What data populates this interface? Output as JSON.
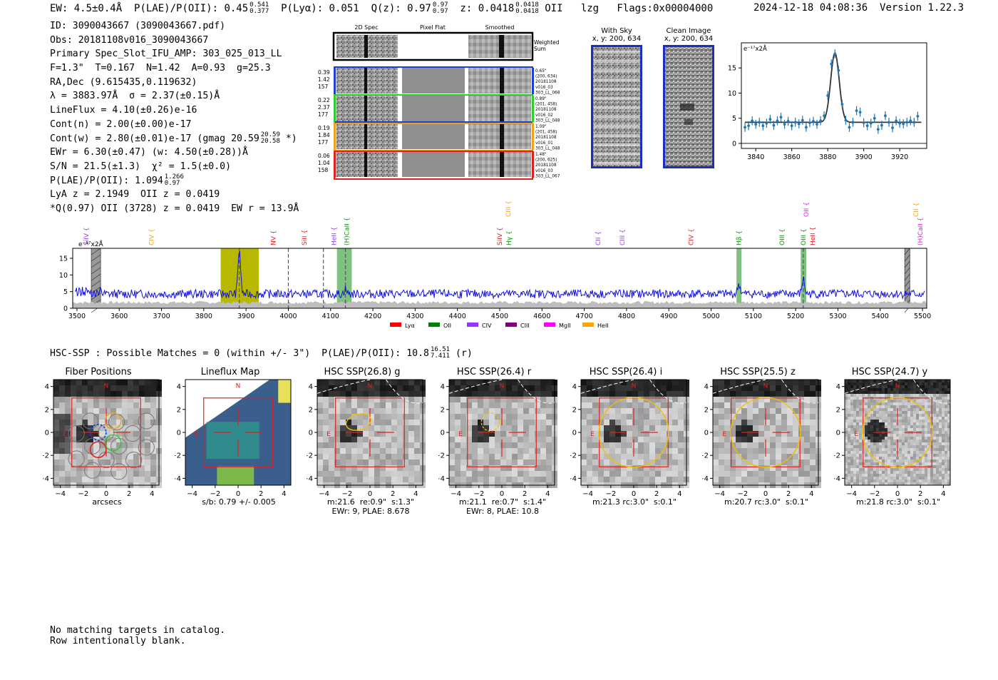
{
  "header": {
    "ew": "EW: 4.5±0.4Å",
    "plae_label": "P(LAE)/P(OII): 0.45",
    "plae_hi": "0.541",
    "plae_lo": "0.377",
    "plya": "P(Lyα): 0.051",
    "qz_label": "Q(z): 0.97",
    "qz_hi": "0.97",
    "qz_lo": "0.97",
    "z_label": "z: 0.0418",
    "z_hi": "0.0418",
    "z_lo": "0.0418",
    "z_line": "OII",
    "flags": "lzg   Flags:0x00004000",
    "datetime": "2024-12-18 04:08:36",
    "version": "Version 1.22.3"
  },
  "info": {
    "id": "ID: 3090043667 (3090043667.pdf)",
    "obs": "Obs: 20181108v016_3090043667",
    "spec": "Primary Spec_Slot_IFU_AMP: 303_025_013_LL",
    "fit": "F=1.3\"  T=0.167  N=1.42  A=0.93  g=25.3",
    "radec": "RA,Dec (9.615435,0.119632)",
    "lambda": "λ = 3883.97Å  σ = 2.37(±0.15)Å",
    "lineflux": "LineFlux = 4.10(±0.26)e-16",
    "contn": "Cont(n) = 2.00(±0.00)e-17",
    "contw": "Cont(w) = 2.80(±0.01)e-17 (gmag 20.59",
    "contw_hi": "20.59",
    "contw_lo": "20.58",
    "contw_end": "*)",
    "ewr": "EWr = 6.30(±0.47) (w: 4.50(±0.28))Å",
    "sn": "S/N = 21.5(±1.3)  χ² = 1.5(±0.0)",
    "plae": "P(LAE)/P(OII): 1.094",
    "plae_hi": "1.266",
    "plae_lo": "0.97",
    "lya": "LyA z = 2.1949  OII z = 0.0419",
    "q": "*Q(0.97) OII (3728) z = 0.0419  EW r = 13.9Å"
  },
  "spec2d": {
    "col_titles": [
      "2D Spec",
      "Pixel Flat",
      "Smoothed"
    ],
    "weighted_sum": "Weighted Sum",
    "rows": [
      {
        "left": [
          "0.39",
          "1.42",
          "157"
        ],
        "right": [
          "0.65\"",
          "(200, 634)",
          "20181108",
          "v016_03",
          "303_LL_068"
        ],
        "color": "#1f3fd0"
      },
      {
        "left": [
          "0.22",
          "2.37",
          "177"
        ],
        "right": [
          "0.89\"",
          "(201, 458)",
          "20181108",
          "v016_02",
          "303_LL_048"
        ],
        "color": "#2ecc2e"
      },
      {
        "left": [
          "0.19",
          "1.84",
          "177"
        ],
        "right": [
          "1.09\"",
          "(201, 458)",
          "20181108",
          "v016_01",
          "303_LL_048"
        ],
        "color": "#f0a020"
      },
      {
        "left": [
          "0.06",
          "1.04",
          "158"
        ],
        "right": [
          "1.48\"",
          "(200, 625)",
          "20181108",
          "v016_03",
          "303_LL_067"
        ],
        "color": "#e02020"
      }
    ]
  },
  "sky": {
    "with_sky_title": "With Sky",
    "with_sky_sub": "x, y: 200, 634",
    "clean_title": "Clean Image",
    "clean_sub": "x, y: 200, 634"
  },
  "zoom_chart": {
    "type": "scatter",
    "ylabel": "e⁻¹⁷x2Å",
    "xlim": [
      3832,
      3935
    ],
    "ylim": [
      -1,
      20
    ],
    "xticks": [
      3840,
      3860,
      3880,
      3900,
      3920
    ],
    "yticks": [
      0,
      5,
      10,
      15
    ],
    "points_x": [
      3834,
      3836,
      3838,
      3840,
      3842,
      3844,
      3846,
      3848,
      3850,
      3852,
      3854,
      3856,
      3858,
      3860,
      3862,
      3864,
      3866,
      3868,
      3870,
      3872,
      3874,
      3876,
      3878,
      3880,
      3882,
      3884,
      3886,
      3888,
      3890,
      3892,
      3894,
      3896,
      3898,
      3900,
      3902,
      3904,
      3906,
      3908,
      3910,
      3912,
      3914,
      3916,
      3918,
      3920,
      3922,
      3924,
      3926,
      3928,
      3930
    ],
    "points_y": [
      3.2,
      3.5,
      4.5,
      3.8,
      4.2,
      3.5,
      4.0,
      4.8,
      3.6,
      4.5,
      5.2,
      3.8,
      4.4,
      3.5,
      4.2,
      3.9,
      4.6,
      3.2,
      4.1,
      4.4,
      3.8,
      4.5,
      5.5,
      9.5,
      15.8,
      17.8,
      14.5,
      7.8,
      4.6,
      3.2,
      4.2,
      6.5,
      6.2,
      4.1,
      3.5,
      4.0,
      5.0,
      2.8,
      3.6,
      5.5,
      4.2,
      3.1,
      4.5,
      4.0,
      3.9,
      4.2,
      4.5,
      4.2,
      5.4
    ],
    "fit_continuum": 4.2,
    "fit_center": 3884,
    "fit_sigma": 2.37,
    "fit_amp": 13.8
  },
  "spectrum": {
    "type": "line",
    "ylabel": "e⁻¹⁷x2Å",
    "xlim": [
      3490,
      5510
    ],
    "ylim": [
      0,
      18
    ],
    "xticks": [
      3500,
      3600,
      3700,
      3800,
      3900,
      4000,
      4100,
      4200,
      4300,
      4400,
      4500,
      4600,
      4700,
      4800,
      4900,
      5000,
      5100,
      5200,
      5300,
      5400,
      5500
    ],
    "yticks": [
      0,
      5,
      10,
      15
    ],
    "highlight": {
      "x0": 3840,
      "x1": 3930,
      "color": "#b8b800"
    },
    "green_bands": [
      [
        4115,
        4150
      ],
      [
        5060,
        5072
      ],
      [
        5212,
        5225
      ]
    ],
    "gray_hatch": [
      [
        3534,
        3556
      ],
      [
        5458,
        5470
      ]
    ],
    "dashed_lines": [
      3884,
      4000,
      4083,
      4135,
      5218
    ],
    "emission_peaks": [
      {
        "x": 3884,
        "h": 13.5
      },
      {
        "x": 4135,
        "h": 1.5
      },
      {
        "x": 5066,
        "h": 3.0
      },
      {
        "x": 5218,
        "h": 4.5
      }
    ],
    "line_labels": [
      {
        "x": 3522,
        "text": "SiIV",
        "color": "#9040e0",
        "row": 1
      },
      {
        "x": 3676,
        "text": "CIV",
        "color": "#f0a020",
        "row": 1
      },
      {
        "x": 3965,
        "text": "NV",
        "color": "#e02020",
        "row": 1
      },
      {
        "x": 4038,
        "text": "SiII",
        "color": "#e02020",
        "row": 1
      },
      {
        "x": 4108,
        "text": "HeII",
        "color": "#9040e0",
        "row": 1
      },
      {
        "x": 4138,
        "text": "(H)CaII",
        "color": "#009900",
        "row": 1
      },
      {
        "x": 4500,
        "text": "SiIV",
        "color": "#e02020",
        "row": 1
      },
      {
        "x": 4520,
        "text": "CIII",
        "color": "#f0a020",
        "row": 0
      },
      {
        "x": 4522,
        "text": "Hγ",
        "color": "#009900",
        "row": 1
      },
      {
        "x": 4733,
        "text": "CII",
        "color": "#9040e0",
        "row": 1
      },
      {
        "x": 4790,
        "text": "CIII",
        "color": "#9040e0",
        "row": 1
      },
      {
        "x": 4953,
        "text": "CIV",
        "color": "#e02020",
        "row": 1
      },
      {
        "x": 5066,
        "text": "Hβ",
        "color": "#009900",
        "row": 1
      },
      {
        "x": 5168,
        "text": "OIII",
        "color": "#009900",
        "row": 1
      },
      {
        "x": 5218,
        "text": "OIII",
        "color": "#009900",
        "row": 1
      },
      {
        "x": 5225,
        "text": "OII",
        "color": "#e020e0",
        "row": 0
      },
      {
        "x": 5240,
        "text": "HeII",
        "color": "#e02020",
        "row": 1
      },
      {
        "x": 5485,
        "text": "CII",
        "color": "#f0a020",
        "row": 0
      },
      {
        "x": 5495,
        "text": "(H)CaII",
        "color": "#e020e0",
        "row": 1
      }
    ],
    "legend": [
      {
        "label": "Lyα",
        "color": "#ff0000"
      },
      {
        "label": "OII",
        "color": "#008000"
      },
      {
        "label": "CIV",
        "color": "#9933ff"
      },
      {
        "label": "CIII",
        "color": "#800080"
      },
      {
        "label": "MgII",
        "color": "#ff00ff"
      },
      {
        "label": "HeII",
        "color": "#ffa500"
      }
    ]
  },
  "hsc": {
    "summary": "HSC-SSP : Possible Matches = 0 (within +/- 3\")  P(LAE)/P(OII): 10.8",
    "summary_hi": "16.51",
    "summary_lo": "7.411",
    "summary_end": "(r)",
    "ticks": [
      "−4",
      "−2",
      "0",
      "2",
      "4"
    ],
    "compass_n": "N",
    "compass_e": "E",
    "cutouts": [
      {
        "title": "Fiber Positions",
        "caption": [
          "arcsecs"
        ]
      },
      {
        "title": "Lineflux Map",
        "caption": [
          "s/b: 0.79 +/- 0.005"
        ]
      },
      {
        "title": "HSC SSP(26.8) g",
        "caption": [
          "m:21.6  re:0.9\"  s:1.3\"",
          "EWr: 9, PLAE: 8.678"
        ]
      },
      {
        "title": "HSC SSP(26.4) r",
        "caption": [
          "m:21.1  re:0.7\"  s:1.4\"",
          "EWr: 8, PLAE: 10.8"
        ]
      },
      {
        "title": "HSC SSP(26.4) i",
        "caption": [
          "m:21.3 rc:3.0\"  s:0.1\""
        ]
      },
      {
        "title": "HSC SSP(25.5) z",
        "caption": [
          "m:20.7 rc:3.0\"  s:0.1\""
        ]
      },
      {
        "title": "HSC SSP(24.7) y",
        "caption": [
          "m:21.8 rc:3.0\"  s:0.1\""
        ]
      }
    ]
  },
  "footer": {
    "line1": "No matching targets in catalog.",
    "line2": "Row intentionally blank."
  }
}
